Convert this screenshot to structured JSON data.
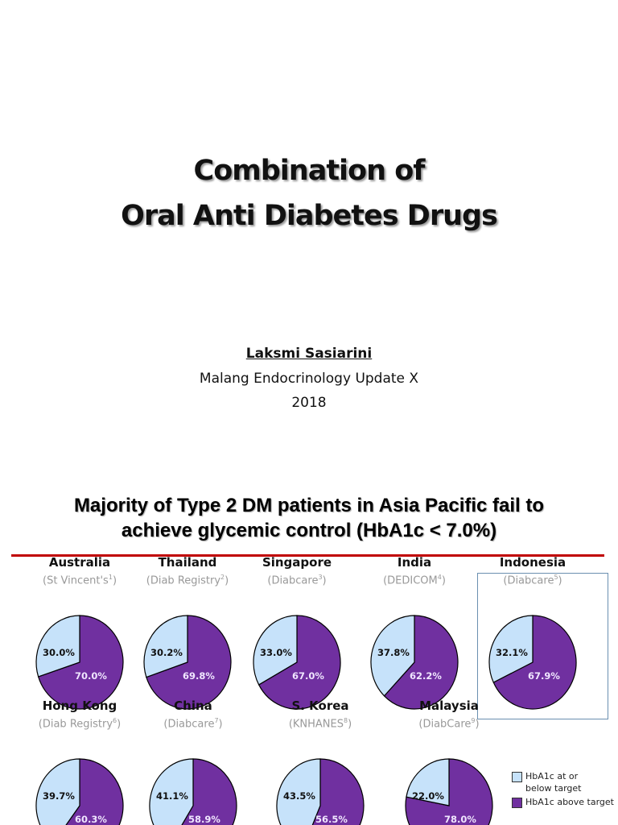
{
  "slide1": {
    "title_line1": "Combination of",
    "title_line2": "Oral Anti Diabetes Drugs",
    "author": "Laksmi Sasiarini",
    "event": "Malang Endocrinology Update X",
    "year": "2018"
  },
  "slide2": {
    "title_line1": "Majority of Type 2 DM patients in Asia Pacific fail to",
    "title_line2": "achieve glycemic control (HbA1c < 7.0%)",
    "legend": [
      {
        "label_line1": "HbA1c at or",
        "label_line2": "below target",
        "color": "#c6e2fa"
      },
      {
        "label_line1": "HbA1c above target",
        "label_line2": "",
        "color": "#7030a0"
      }
    ]
  },
  "chart_data": {
    "type": "pie",
    "series_names": [
      "HbA1c at or below target",
      "HbA1c above target"
    ],
    "colors": [
      "#c6e2fa",
      "#7030a0"
    ],
    "charts": [
      {
        "country": "Australia",
        "source": "St Vincent's",
        "ref": "1",
        "values": [
          30.0,
          70.0
        ],
        "labels": [
          "30.0%",
          "70.0%"
        ],
        "highlighted": false
      },
      {
        "country": "Thailand",
        "source": "Diab Registry",
        "ref": "2",
        "values": [
          30.2,
          69.8
        ],
        "labels": [
          "30.2%",
          "69.8%"
        ],
        "highlighted": false
      },
      {
        "country": "Singapore",
        "source": "Diabcare",
        "ref": "3",
        "values": [
          33.0,
          67.0
        ],
        "labels": [
          "33.0%",
          "67.0%"
        ],
        "highlighted": false
      },
      {
        "country": "India",
        "source": "DEDICOM",
        "ref": "4",
        "values": [
          37.8,
          62.2
        ],
        "labels": [
          "37.8%",
          "62.2%"
        ],
        "highlighted": false
      },
      {
        "country": "Indonesia",
        "source": "Diabcare",
        "ref": "5",
        "values": [
          32.1,
          67.9
        ],
        "labels": [
          "32.1%",
          "67.9%"
        ],
        "highlighted": true
      },
      {
        "country": "Hong Kong",
        "source": "Diab Registry",
        "ref": "6",
        "values": [
          39.7,
          60.3
        ],
        "labels": [
          "39.7%",
          "60.3%"
        ],
        "highlighted": false
      },
      {
        "country": "China",
        "source": "Diabcare",
        "ref": "7",
        "values": [
          41.1,
          58.9
        ],
        "labels": [
          "41.1%",
          "58.9%"
        ],
        "highlighted": false
      },
      {
        "country": "S. Korea",
        "source": "KNHANES",
        "ref": "8",
        "values": [
          43.5,
          56.5
        ],
        "labels": [
          "43.5%",
          "56.5%"
        ],
        "highlighted": false
      },
      {
        "country": "Malaysia",
        "source": "DiabCare",
        "ref": "9",
        "values": [
          22.0,
          78.0
        ],
        "labels": [
          "22.0%",
          "78.0%"
        ],
        "highlighted": false
      }
    ]
  }
}
